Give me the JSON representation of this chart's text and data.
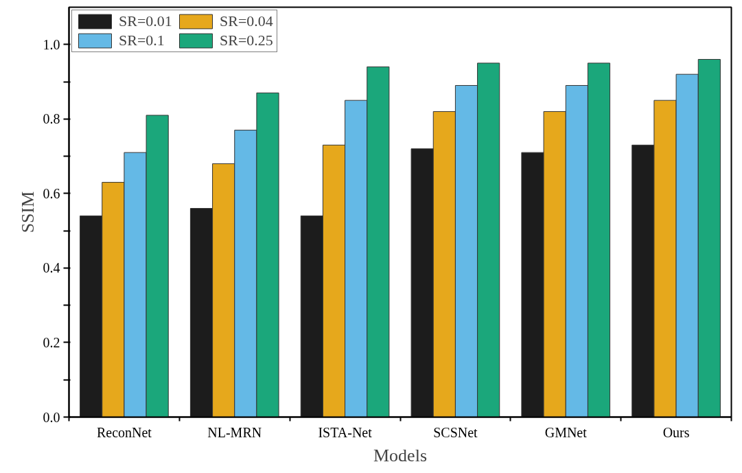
{
  "chart_data": {
    "type": "bar",
    "xlabel": "Models",
    "ylabel": "SSIM",
    "categories": [
      "ReconNet",
      "NL-MRN",
      "ISTA-Net",
      "SCSNet",
      "GMNet",
      "Ours"
    ],
    "series": [
      {
        "name": "SR=0.01",
        "color": "#1c1c1c",
        "values": [
          0.54,
          0.56,
          0.54,
          0.72,
          0.71,
          0.73
        ]
      },
      {
        "name": "SR=0.04",
        "color": "#e6a81c",
        "values": [
          0.63,
          0.68,
          0.73,
          0.82,
          0.82,
          0.85
        ]
      },
      {
        "name": "SR=0.1",
        "color": "#64b9e6",
        "values": [
          0.71,
          0.77,
          0.85,
          0.89,
          0.89,
          0.92
        ]
      },
      {
        "name": "SR=0.25",
        "color": "#1ba77b",
        "values": [
          0.81,
          0.87,
          0.94,
          0.95,
          0.95,
          0.96
        ]
      }
    ],
    "ylim": [
      0,
      1.1
    ],
    "yticks": [
      {
        "value": 0,
        "label": "0.0"
      },
      {
        "value": 0.1,
        "label": null
      },
      0.2,
      {
        "value": 0.3,
        "label": null
      },
      0.4,
      {
        "value": 0.5,
        "label": null
      },
      0.6,
      {
        "value": 0.7,
        "label": null
      },
      0.8,
      {
        "value": 0.9,
        "label": null
      },
      {
        "value": 1.0,
        "label": "1.0"
      }
    ],
    "grid": false,
    "legend": "top left"
  }
}
